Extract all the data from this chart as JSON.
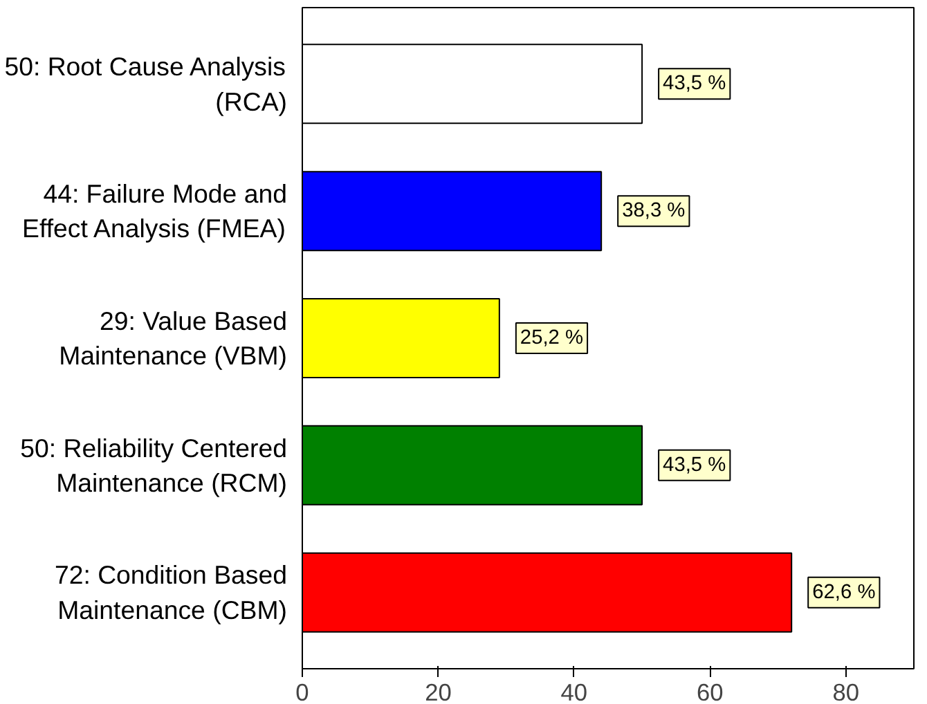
{
  "chart_data": {
    "type": "bar",
    "orientation": "horizontal",
    "categories": [
      "50: Root Cause Analysis (RCA)",
      "44: Failure Mode and Effect Analysis (FMEA)",
      "29: Value Based Maintenance (VBM)",
      "50: Reliability Centered Maintenance (RCM)",
      "72: Condition Based Maintenance (CBM)"
    ],
    "values": [
      50,
      44,
      29,
      50,
      72
    ],
    "colors": [
      "#ffffff",
      "#0000ff",
      "#ffff00",
      "#008000",
      "#ff0000"
    ],
    "annotations": [
      {
        "text": "43,5 %",
        "x": 50,
        "y": "50: Root Cause Analysis (RCA)"
      },
      {
        "text": "38,3 %",
        "x": 44,
        "y": "44: Failure Mode and Effect Analysis (FMEA)"
      },
      {
        "text": "25,2 %",
        "x": 29,
        "y": "29: Value Based Maintenance (VBM)"
      },
      {
        "text": "43,5 %",
        "x": 50,
        "y": "50: Reliability Centered Maintenance (RCM)"
      },
      {
        "text": "62,6 %",
        "x": 72,
        "y": "72: Condition Based Maintenance (CBM)"
      }
    ],
    "xlim": [
      0,
      90
    ],
    "xticks": [
      0,
      20,
      40,
      60,
      80
    ],
    "grid": false
  }
}
